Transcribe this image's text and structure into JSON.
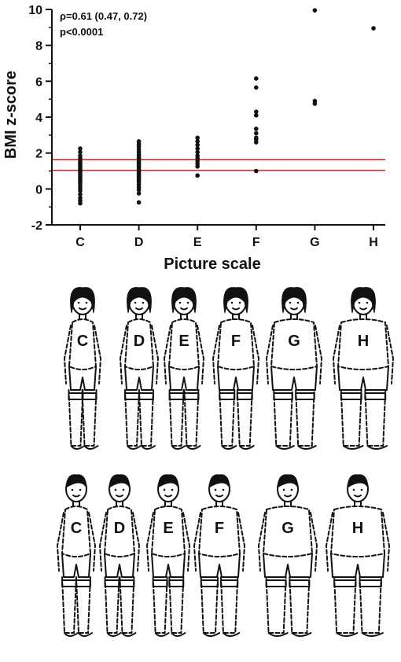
{
  "chart_data": {
    "type": "scatter",
    "categories": [
      "C",
      "D",
      "E",
      "F",
      "G",
      "H"
    ],
    "xlabel": "Picture scale",
    "ylabel": "BMI z-score",
    "ylim": [
      -2,
      10
    ],
    "yticks": [
      -2,
      0,
      2,
      4,
      6,
      8,
      10
    ],
    "annotation_line1": "ρ=0.61 (0.47, 0.72)",
    "annotation_line2": "p<0.0001",
    "reference_lines": [
      1.64,
      1.04
    ],
    "reference_line_color": "#d42020",
    "point_color": "#111111",
    "points": {
      "C": [
        2.25,
        2.05,
        1.85,
        1.7,
        1.55,
        1.45,
        1.35,
        1.25,
        1.15,
        1.05,
        0.95,
        0.85,
        0.75,
        0.65,
        0.55,
        0.45,
        0.35,
        0.2,
        0.05,
        -0.1,
        -0.3,
        -0.5,
        -0.65,
        -0.8
      ],
      "D": [
        2.65,
        2.5,
        2.35,
        2.2,
        2.05,
        1.9,
        1.8,
        1.7,
        1.6,
        1.5,
        1.4,
        1.3,
        1.2,
        1.1,
        1.0,
        0.9,
        0.8,
        0.7,
        0.6,
        0.5,
        0.4,
        0.25,
        0.1,
        -0.05,
        -0.25,
        -0.75
      ],
      "E": [
        2.85,
        2.65,
        2.45,
        2.25,
        2.05,
        1.85,
        1.7,
        1.55,
        1.4,
        1.25,
        0.75
      ],
      "F": [
        6.15,
        5.65,
        4.3,
        4.1,
        3.35,
        3.1,
        2.85,
        2.75,
        2.6,
        1.0
      ],
      "G": [
        9.95,
        4.9,
        4.75
      ],
      "H": [
        8.95
      ]
    }
  },
  "figures": {
    "girls": [
      "C",
      "D",
      "E",
      "F",
      "G",
      "H"
    ],
    "boys": [
      "C",
      "D",
      "E",
      "F",
      "G",
      "H"
    ]
  }
}
